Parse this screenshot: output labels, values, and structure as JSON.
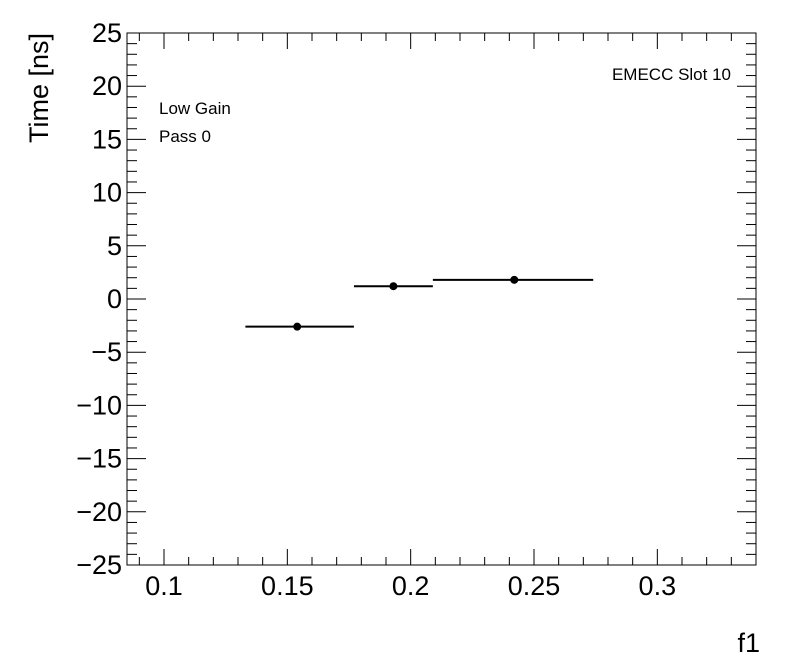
{
  "chart_data": {
    "type": "scatter",
    "xlabel": "f1",
    "ylabel": "Time [ns]",
    "xlim": [
      0.085,
      0.34
    ],
    "ylim": [
      -25,
      25
    ],
    "x_ticks": [
      0.1,
      0.15,
      0.2,
      0.25,
      0.3
    ],
    "x_tick_labels": [
      "0.1",
      "0.15",
      "0.2",
      "0.25",
      "0.3"
    ],
    "y_ticks": [
      -25,
      -20,
      -15,
      -10,
      -5,
      0,
      5,
      10,
      15,
      20,
      25
    ],
    "y_tick_labels": [
      "−25",
      "−20",
      "−15",
      "−10",
      "−5",
      "0",
      "5",
      "10",
      "15",
      "20",
      "25"
    ],
    "grid": false,
    "annotations": {
      "label_top_right": "EMECC Slot 10",
      "label_gain": "Low Gain",
      "label_pass": "Pass 0"
    },
    "points": [
      {
        "x": 0.154,
        "y": -2.6,
        "xerr_low": 0.133,
        "xerr_high": 0.177
      },
      {
        "x": 0.193,
        "y": 1.2,
        "xerr_low": 0.177,
        "xerr_high": 0.209
      },
      {
        "x": 0.242,
        "y": 1.8,
        "xerr_low": 0.209,
        "xerr_high": 0.274
      }
    ],
    "colors": {
      "marker": "#000000",
      "axis": "#000000",
      "background": "#ffffff"
    }
  }
}
